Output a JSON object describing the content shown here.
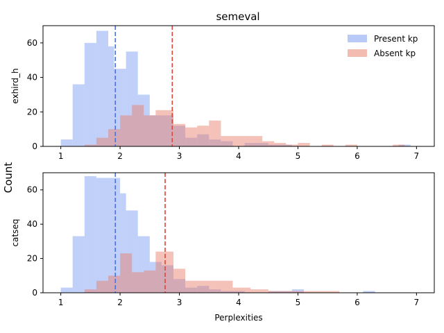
{
  "figure": {
    "title": "semeval",
    "shared_ylabel": "Count",
    "shared_xlabel": "Perplexities"
  },
  "colors": {
    "present": "#6c8ff0",
    "absent": "#e8806c",
    "present_mean_line": "#4a6fd8",
    "absent_mean_line": "#d9473a"
  },
  "chart_data": [
    {
      "type": "bar",
      "subtype": "overlapping-histogram",
      "ylabel": "exhird_h",
      "xlim": [
        0.7,
        7.3
      ],
      "ylim": [
        0,
        70
      ],
      "xticks": [
        1,
        2,
        3,
        4,
        5,
        6,
        7
      ],
      "yticks": [
        0,
        20,
        40,
        60
      ],
      "legend": {
        "position": "top-right",
        "entries": [
          "Present kp",
          "Absent kp"
        ]
      },
      "series": [
        {
          "name": "Present kp",
          "bins": [
            [
              1.0,
              1.2,
              4
            ],
            [
              1.2,
              1.4,
              36
            ],
            [
              1.4,
              1.6,
              60
            ],
            [
              1.6,
              1.8,
              67
            ],
            [
              1.8,
              1.9,
              58
            ],
            [
              1.9,
              2.1,
              45
            ],
            [
              2.1,
              2.3,
              55
            ],
            [
              2.3,
              2.5,
              30
            ],
            [
              2.5,
              2.7,
              18
            ],
            [
              2.7,
              2.9,
              18
            ],
            [
              2.9,
              3.1,
              12
            ],
            [
              3.1,
              3.3,
              5
            ],
            [
              3.3,
              3.5,
              7
            ],
            [
              3.5,
              3.7,
              4
            ],
            [
              3.7,
              3.9,
              3
            ],
            [
              4.1,
              4.3,
              2
            ],
            [
              4.3,
              4.5,
              2
            ],
            [
              4.5,
              4.7,
              1
            ],
            [
              4.7,
              4.9,
              1
            ],
            [
              6.7,
              6.9,
              1
            ]
          ],
          "mean": 1.92
        },
        {
          "name": "Absent kp",
          "bins": [
            [
              1.4,
              1.6,
              1
            ],
            [
              1.6,
              1.8,
              5
            ],
            [
              1.8,
              2.0,
              10
            ],
            [
              2.0,
              2.2,
              18
            ],
            [
              2.2,
              2.4,
              24
            ],
            [
              2.4,
              2.6,
              18
            ],
            [
              2.6,
              2.9,
              21
            ],
            [
              2.9,
              3.1,
              13
            ],
            [
              3.1,
              3.3,
              11
            ],
            [
              3.3,
              3.5,
              12
            ],
            [
              3.5,
              3.7,
              15
            ],
            [
              3.7,
              3.9,
              6
            ],
            [
              3.9,
              4.2,
              6
            ],
            [
              4.2,
              4.4,
              6
            ],
            [
              4.4,
              4.6,
              3
            ],
            [
              4.6,
              4.8,
              2
            ],
            [
              4.8,
              5.0,
              1
            ],
            [
              5.0,
              5.2,
              2
            ],
            [
              5.4,
              5.6,
              1
            ],
            [
              5.8,
              6.0,
              1
            ],
            [
              6.6,
              6.8,
              1
            ]
          ],
          "mean": 2.88
        }
      ]
    },
    {
      "type": "bar",
      "subtype": "overlapping-histogram",
      "ylabel": "catseq",
      "xlabel": "Perplexities",
      "xlim": [
        0.7,
        7.3
      ],
      "ylim": [
        0,
        70
      ],
      "xticks": [
        1,
        2,
        3,
        4,
        5,
        6,
        7
      ],
      "yticks": [
        0,
        20,
        40,
        60
      ],
      "legend": null,
      "series": [
        {
          "name": "Present kp",
          "bins": [
            [
              1.0,
              1.2,
              3
            ],
            [
              1.2,
              1.4,
              33
            ],
            [
              1.4,
              1.6,
              68
            ],
            [
              1.6,
              1.8,
              67
            ],
            [
              1.8,
              2.0,
              67
            ],
            [
              2.0,
              2.1,
              58
            ],
            [
              2.1,
              2.3,
              48
            ],
            [
              2.3,
              2.5,
              33
            ],
            [
              2.5,
              2.7,
              18
            ],
            [
              2.7,
              2.9,
              16
            ],
            [
              2.9,
              3.1,
              8
            ],
            [
              3.1,
              3.3,
              3
            ],
            [
              3.3,
              3.5,
              4
            ],
            [
              3.5,
              3.7,
              2
            ],
            [
              3.7,
              3.9,
              1
            ],
            [
              3.9,
              4.1,
              1
            ],
            [
              4.5,
              4.7,
              1
            ],
            [
              4.7,
              4.9,
              1
            ],
            [
              4.9,
              5.1,
              2
            ],
            [
              6.1,
              6.3,
              1
            ]
          ],
          "mean": 1.92
        },
        {
          "name": "Absent kp",
          "bins": [
            [
              1.4,
              1.6,
              2
            ],
            [
              1.6,
              1.8,
              7
            ],
            [
              1.8,
              2.0,
              10
            ],
            [
              2.0,
              2.2,
              23
            ],
            [
              2.2,
              2.4,
              12
            ],
            [
              2.4,
              2.6,
              13
            ],
            [
              2.6,
              2.9,
              24
            ],
            [
              2.9,
              3.1,
              14
            ],
            [
              3.1,
              3.3,
              7
            ],
            [
              3.3,
              3.6,
              7
            ],
            [
              3.6,
              3.9,
              7
            ],
            [
              3.9,
              4.2,
              3
            ],
            [
              4.2,
              4.5,
              2
            ],
            [
              4.5,
              5.0,
              1
            ],
            [
              5.0,
              5.7,
              1
            ]
          ],
          "mean": 2.76
        }
      ]
    }
  ]
}
